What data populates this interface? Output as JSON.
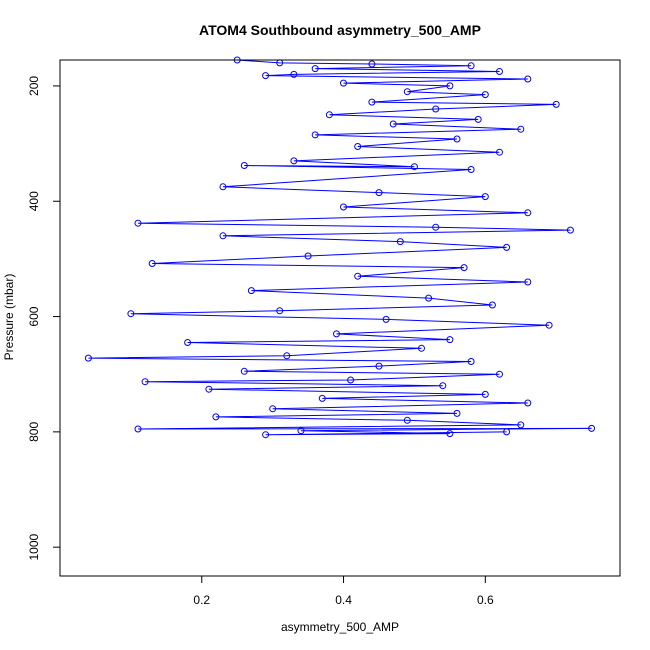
{
  "chart_data": {
    "type": "line",
    "title": "ATOM4 Southbound asymmetry_500_AMP",
    "xlabel": "asymmetry_500_AMP",
    "ylabel": "Pressure (mbar)",
    "xlim": [
      0.0,
      0.79
    ],
    "ylim": [
      1050,
      155
    ],
    "y_reversed": true,
    "x_ticks": [
      0.2,
      0.4,
      0.6
    ],
    "x_tick_labels": [
      "0.2",
      "0.4",
      "0.6"
    ],
    "y_ticks": [
      200,
      400,
      600,
      800,
      1000
    ],
    "y_tick_labels": [
      "200",
      "400",
      "600",
      "800",
      "1000"
    ],
    "marker": "open-circle",
    "series": [
      {
        "color": "#0000ff",
        "points": [
          [
            0.25,
            155
          ],
          [
            0.31,
            160
          ],
          [
            0.44,
            162
          ],
          [
            0.58,
            165
          ],
          [
            0.36,
            170
          ],
          [
            0.62,
            175
          ],
          [
            0.33,
            180
          ],
          [
            0.29,
            182
          ],
          [
            0.66,
            188
          ],
          [
            0.4,
            195
          ],
          [
            0.55,
            200
          ],
          [
            0.49,
            210
          ],
          [
            0.6,
            215
          ],
          [
            0.44,
            228
          ],
          [
            0.7,
            232
          ],
          [
            0.53,
            240
          ],
          [
            0.38,
            250
          ],
          [
            0.59,
            258
          ],
          [
            0.47,
            266
          ],
          [
            0.65,
            275
          ],
          [
            0.36,
            285
          ],
          [
            0.56,
            292
          ],
          [
            0.42,
            305
          ],
          [
            0.62,
            315
          ],
          [
            0.33,
            330
          ],
          [
            0.5,
            340
          ],
          [
            0.26,
            338
          ],
          [
            0.58,
            345
          ],
          [
            0.23,
            375
          ],
          [
            0.45,
            385
          ],
          [
            0.6,
            392
          ],
          [
            0.4,
            410
          ],
          [
            0.66,
            420
          ],
          [
            0.11,
            438
          ],
          [
            0.53,
            445
          ],
          [
            0.72,
            450
          ],
          [
            0.23,
            460
          ],
          [
            0.48,
            470
          ],
          [
            0.63,
            480
          ],
          [
            0.35,
            495
          ],
          [
            0.13,
            508
          ],
          [
            0.57,
            515
          ],
          [
            0.42,
            530
          ],
          [
            0.66,
            540
          ],
          [
            0.27,
            555
          ],
          [
            0.52,
            568
          ],
          [
            0.61,
            580
          ],
          [
            0.31,
            590
          ],
          [
            0.1,
            595
          ],
          [
            0.46,
            605
          ],
          [
            0.69,
            615
          ],
          [
            0.39,
            630
          ],
          [
            0.55,
            640
          ],
          [
            0.18,
            645
          ],
          [
            0.51,
            655
          ],
          [
            0.32,
            668
          ],
          [
            0.04,
            672
          ],
          [
            0.58,
            678
          ],
          [
            0.45,
            686
          ],
          [
            0.26,
            695
          ],
          [
            0.62,
            700
          ],
          [
            0.41,
            710
          ],
          [
            0.12,
            713
          ],
          [
            0.54,
            720
          ],
          [
            0.21,
            726
          ],
          [
            0.6,
            735
          ],
          [
            0.37,
            742
          ],
          [
            0.66,
            750
          ],
          [
            0.3,
            760
          ],
          [
            0.56,
            768
          ],
          [
            0.22,
            774
          ],
          [
            0.49,
            780
          ],
          [
            0.65,
            788
          ],
          [
            0.11,
            795
          ],
          [
            0.75,
            794
          ],
          [
            0.34,
            798
          ],
          [
            0.55,
            803
          ],
          [
            0.29,
            805
          ],
          [
            0.63,
            800
          ]
        ]
      }
    ]
  }
}
